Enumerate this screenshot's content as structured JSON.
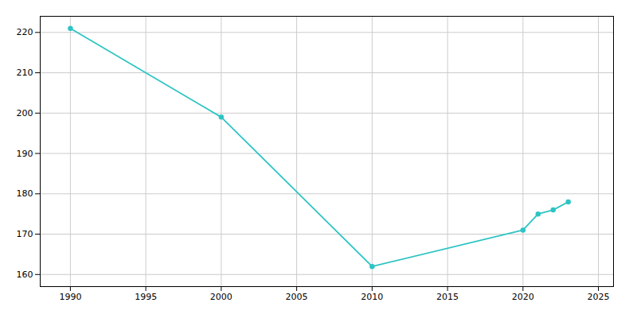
{
  "chart_data": {
    "type": "line",
    "x": [
      1990,
      2000,
      2010,
      2020,
      2021,
      2022,
      2023
    ],
    "values": [
      221,
      199,
      162,
      171,
      175,
      176,
      178
    ],
    "color": "#2EC4C4",
    "marker": "circle",
    "xlim": [
      1988,
      2026
    ],
    "ylim": [
      157,
      224
    ],
    "xticks": [
      1990,
      1995,
      2000,
      2005,
      2010,
      2015,
      2020,
      2025
    ],
    "yticks": [
      160,
      170,
      180,
      190,
      200,
      210,
      220
    ],
    "grid": true
  }
}
